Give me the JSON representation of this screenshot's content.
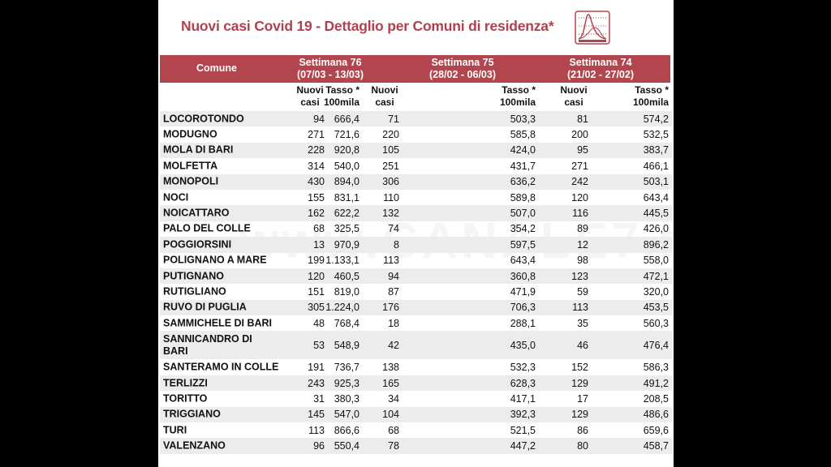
{
  "title": "Nuovi casi Covid 19 - Dettaglio per Comuni di residenza*",
  "icon": "epidemic-curve-chart-icon",
  "watermark": "www.CANALE7.tv",
  "colors": {
    "accent": "#b3454f",
    "title": "#b0414e",
    "row_alt": "#ececec"
  },
  "header": {
    "comune": "Comune",
    "weeks": [
      {
        "label": "Settimana 76",
        "range": "(07/03 - 13/03)"
      },
      {
        "label": "Settimana 75",
        "range": "(28/02 - 06/03)"
      },
      {
        "label": "Settimana 74",
        "range": "(21/02 - 27/02)"
      }
    ],
    "nuovi_l1": "Nuovi",
    "nuovi_l2": "casi",
    "tasso_l1": "Tasso *",
    "tasso_l2": "100mila"
  },
  "rows": [
    {
      "comune": "LOCOROTONDO",
      "v": [
        "94",
        "666,4",
        "71",
        "503,3",
        "81",
        "574,2"
      ]
    },
    {
      "comune": "MODUGNO",
      "v": [
        "271",
        "721,6",
        "220",
        "585,8",
        "200",
        "532,5"
      ]
    },
    {
      "comune": "MOLA DI BARI",
      "v": [
        "228",
        "920,8",
        "105",
        "424,0",
        "95",
        "383,7"
      ]
    },
    {
      "comune": "MOLFETTA",
      "v": [
        "314",
        "540,0",
        "251",
        "431,7",
        "271",
        "466,1"
      ]
    },
    {
      "comune": "MONOPOLI",
      "v": [
        "430",
        "894,0",
        "306",
        "636,2",
        "242",
        "503,1"
      ]
    },
    {
      "comune": "NOCI",
      "v": [
        "155",
        "831,1",
        "110",
        "589,8",
        "120",
        "643,4"
      ]
    },
    {
      "comune": "NOICATTARO",
      "v": [
        "162",
        "622,2",
        "132",
        "507,0",
        "116",
        "445,5"
      ]
    },
    {
      "comune": "PALO DEL COLLE",
      "v": [
        "68",
        "325,5",
        "74",
        "354,2",
        "89",
        "426,0"
      ]
    },
    {
      "comune": "POGGIORSINI",
      "v": [
        "13",
        "970,9",
        "8",
        "597,5",
        "12",
        "896,2"
      ]
    },
    {
      "comune": "POLIGNANO A MARE",
      "v": [
        "199",
        "1.133,1",
        "113",
        "643,4",
        "98",
        "558,0"
      ]
    },
    {
      "comune": "PUTIGNANO",
      "v": [
        "120",
        "460,5",
        "94",
        "360,8",
        "123",
        "472,1"
      ]
    },
    {
      "comune": "RUTIGLIANO",
      "v": [
        "151",
        "819,0",
        "87",
        "471,9",
        "59",
        "320,0"
      ]
    },
    {
      "comune": "RUVO DI PUGLIA",
      "v": [
        "305",
        "1.224,0",
        "176",
        "706,3",
        "113",
        "453,5"
      ]
    },
    {
      "comune": "SAMMICHELE DI BARI",
      "v": [
        "48",
        "768,4",
        "18",
        "288,1",
        "35",
        "560,3"
      ]
    },
    {
      "comune": "SANNICANDRO DI BARI",
      "v": [
        "53",
        "548,9",
        "42",
        "435,0",
        "46",
        "476,4"
      ]
    },
    {
      "comune": "SANTERAMO IN COLLE",
      "v": [
        "191",
        "736,7",
        "138",
        "532,3",
        "152",
        "586,3"
      ]
    },
    {
      "comune": "TERLIZZI",
      "v": [
        "243",
        "925,3",
        "165",
        "628,3",
        "129",
        "491,2"
      ]
    },
    {
      "comune": "TORITTO",
      "v": [
        "31",
        "380,3",
        "34",
        "417,1",
        "17",
        "208,5"
      ]
    },
    {
      "comune": "TRIGGIANO",
      "v": [
        "145",
        "547,0",
        "104",
        "392,3",
        "129",
        "486,6"
      ]
    },
    {
      "comune": "TURI",
      "v": [
        "113",
        "866,6",
        "68",
        "521,5",
        "86",
        "659,6"
      ]
    },
    {
      "comune": "VALENZANO",
      "v": [
        "96",
        "550,4",
        "78",
        "447,2",
        "80",
        "458,7"
      ]
    }
  ]
}
